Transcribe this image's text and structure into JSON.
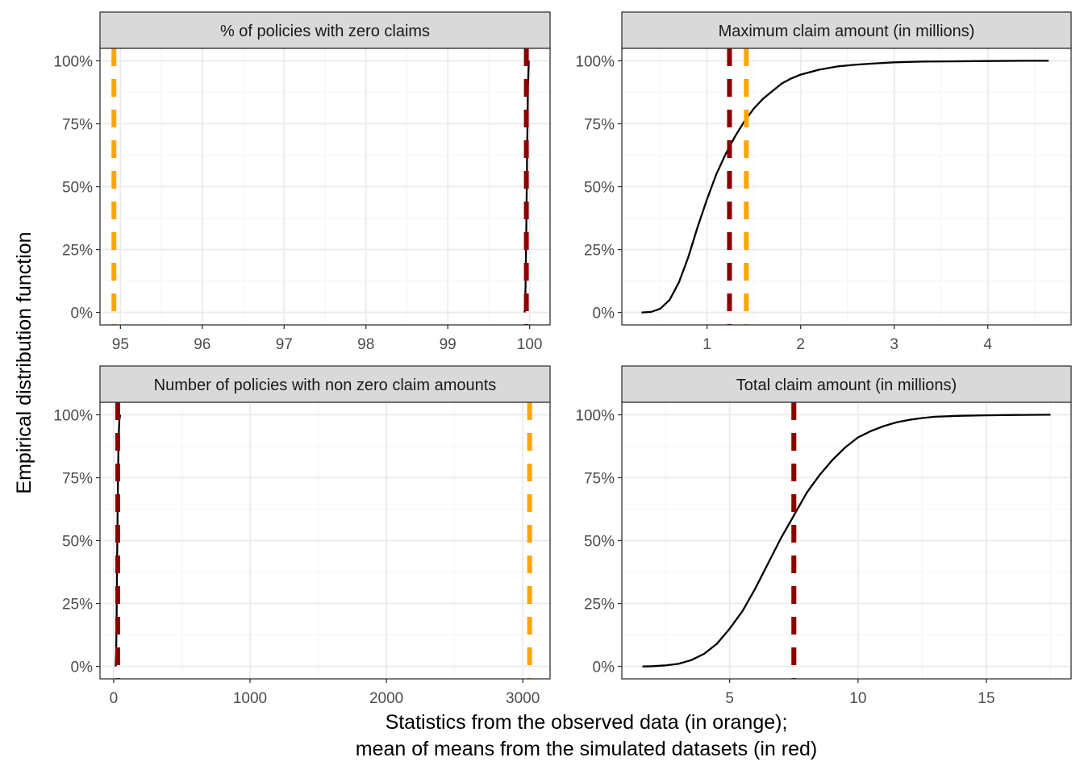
{
  "figure": {
    "ylabel": "Empirical distribution function",
    "xlabel_lines": [
      "Statistics from the observed data (in orange);",
      "mean of means from the simulated datasets (in red)"
    ]
  },
  "colors": {
    "observed": "#FFA500",
    "simulated_mean": "#8B0000",
    "ecdf_line": "#000000",
    "strip_fill": "#D9D9D9",
    "grid_major": "#EBEBEB",
    "grid_minor": "#F5F5F5",
    "panel_border": "#333333"
  },
  "chart_data": [
    {
      "type": "line",
      "title": "% of policies with zero claims",
      "xlim": [
        94.75,
        100.25
      ],
      "ylim": [
        0,
        1
      ],
      "x_ticks": [
        95,
        96,
        97,
        98,
        99,
        100
      ],
      "x_tick_labels": [
        "95",
        "96",
        "97",
        "98",
        "99",
        "100"
      ],
      "y_ticks": [
        0,
        0.25,
        0.5,
        0.75,
        1
      ],
      "y_tick_labels": [
        "0%",
        "25%",
        "50%",
        "75%",
        "100%"
      ],
      "series": [
        {
          "x": [
            99.94,
            99.95,
            99.96,
            99.97,
            99.98,
            99.99
          ],
          "y": [
            0.0,
            0.1,
            0.35,
            0.65,
            0.9,
            1.0
          ]
        }
      ],
      "observed_value": 94.92,
      "simulated_mean": 99.96
    },
    {
      "type": "line",
      "title": "Maximum claim amount (in millions)",
      "xlim": [
        0.09,
        4.89
      ],
      "ylim": [
        0,
        1
      ],
      "x_ticks": [
        1,
        2,
        3,
        4
      ],
      "x_tick_labels": [
        "1",
        "2",
        "3",
        "4"
      ],
      "y_ticks": [
        0,
        0.25,
        0.5,
        0.75,
        1
      ],
      "y_tick_labels": [
        "0%",
        "25%",
        "50%",
        "75%",
        "100%"
      ],
      "series": [
        {
          "x": [
            0.3,
            0.4,
            0.5,
            0.6,
            0.7,
            0.8,
            0.9,
            1.0,
            1.1,
            1.2,
            1.3,
            1.4,
            1.5,
            1.6,
            1.7,
            1.8,
            1.9,
            2.0,
            2.2,
            2.4,
            2.6,
            2.8,
            3.0,
            3.3,
            3.6,
            4.0,
            4.4,
            4.65
          ],
          "y": [
            0.0,
            0.002,
            0.015,
            0.05,
            0.12,
            0.22,
            0.34,
            0.45,
            0.55,
            0.63,
            0.7,
            0.76,
            0.81,
            0.85,
            0.88,
            0.91,
            0.93,
            0.945,
            0.965,
            0.978,
            0.985,
            0.99,
            0.994,
            0.997,
            0.998,
            0.999,
            1.0,
            1.0
          ]
        }
      ],
      "observed_value": 1.42,
      "simulated_mean": 1.24
    },
    {
      "type": "line",
      "title": "Number of policies with non zero claim amounts",
      "xlim": [
        -100,
        3200
      ],
      "ylim": [
        0,
        1
      ],
      "x_ticks": [
        0,
        1000,
        2000,
        3000
      ],
      "x_tick_labels": [
        "0",
        "1000",
        "2000",
        "3000"
      ],
      "y_ticks": [
        0,
        0.25,
        0.5,
        0.75,
        1
      ],
      "y_tick_labels": [
        "0%",
        "25%",
        "50%",
        "75%",
        "100%"
      ],
      "series": [
        {
          "x": [
            15,
            18,
            22,
            25,
            28,
            32,
            36,
            42,
            48
          ],
          "y": [
            0.0,
            0.05,
            0.2,
            0.4,
            0.55,
            0.75,
            0.9,
            0.98,
            1.0
          ]
        }
      ],
      "observed_value": 3050,
      "simulated_mean": 30
    },
    {
      "type": "line",
      "title": "Total claim amount (in millions)",
      "xlim": [
        0.8,
        18.3
      ],
      "ylim": [
        0,
        1
      ],
      "x_ticks": [
        5,
        10,
        15
      ],
      "x_tick_labels": [
        "5",
        "10",
        "15"
      ],
      "y_ticks": [
        0,
        0.25,
        0.5,
        0.75,
        1
      ],
      "y_tick_labels": [
        "0%",
        "25%",
        "50%",
        "75%",
        "100%"
      ],
      "series": [
        {
          "x": [
            1.6,
            2.0,
            2.5,
            3.0,
            3.5,
            4.0,
            4.5,
            5.0,
            5.5,
            6.0,
            6.5,
            7.0,
            7.5,
            8.0,
            8.5,
            9.0,
            9.5,
            10.0,
            10.5,
            11.0,
            11.5,
            12.0,
            12.5,
            13.0,
            14.0,
            15.0,
            16.0,
            17.5
          ],
          "y": [
            0.0,
            0.001,
            0.004,
            0.01,
            0.025,
            0.05,
            0.09,
            0.15,
            0.22,
            0.31,
            0.41,
            0.51,
            0.6,
            0.69,
            0.76,
            0.82,
            0.87,
            0.91,
            0.935,
            0.955,
            0.97,
            0.98,
            0.987,
            0.992,
            0.996,
            0.998,
            0.999,
            1.0
          ]
        }
      ],
      "observed_value": 7.5,
      "simulated_mean": 7.5
    }
  ]
}
